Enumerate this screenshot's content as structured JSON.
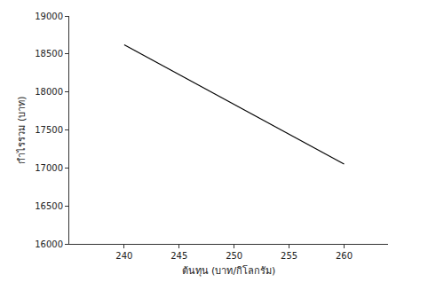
{
  "chart_data": {
    "type": "line",
    "x_label": "ต้นทุน (บาท/กิโลกรัม)",
    "y_label": "กำไรรวม (บาท)",
    "x": [
      240,
      260
    ],
    "values": [
      18620,
      17050
    ],
    "color": "#000000",
    "xlim": [
      235,
      264
    ],
    "xticks": [
      240,
      245,
      250,
      255,
      260
    ],
    "ylim": [
      16000,
      19000
    ],
    "yticks": [
      16000,
      16500,
      17000,
      17500,
      18000,
      18500,
      19000
    ],
    "grid": false,
    "legend": "none"
  }
}
